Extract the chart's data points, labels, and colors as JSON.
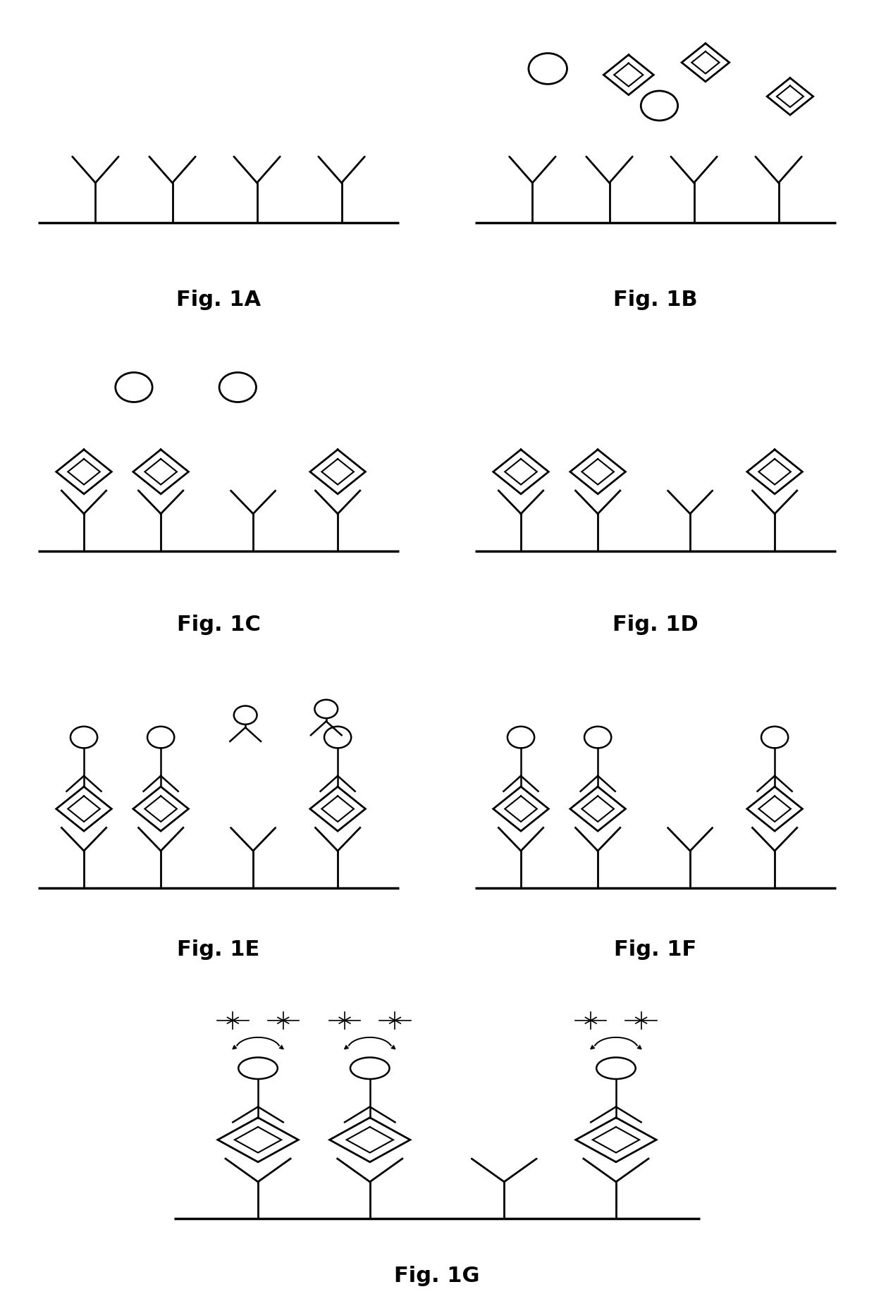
{
  "bg_color": "#ffffff",
  "line_color": "#000000",
  "lw": 2.0,
  "lw_thin": 1.5,
  "fig_labels": [
    "Fig. 1A",
    "Fig. 1B",
    "Fig. 1C",
    "Fig. 1D",
    "Fig. 1E",
    "Fig. 1F",
    "Fig. 1G"
  ],
  "label_fontsize": 22,
  "label_fontweight": "bold",
  "panels": {
    "1A": [
      0.03,
      0.755,
      0.44,
      0.235
    ],
    "1B": [
      0.53,
      0.755,
      0.44,
      0.235
    ],
    "1C": [
      0.03,
      0.51,
      0.44,
      0.235
    ],
    "1D": [
      0.53,
      0.51,
      0.44,
      0.235
    ],
    "1E": [
      0.03,
      0.265,
      0.44,
      0.235
    ],
    "1F": [
      0.53,
      0.265,
      0.44,
      0.235
    ],
    "1G": [
      0.18,
      0.02,
      0.64,
      0.235
    ]
  }
}
